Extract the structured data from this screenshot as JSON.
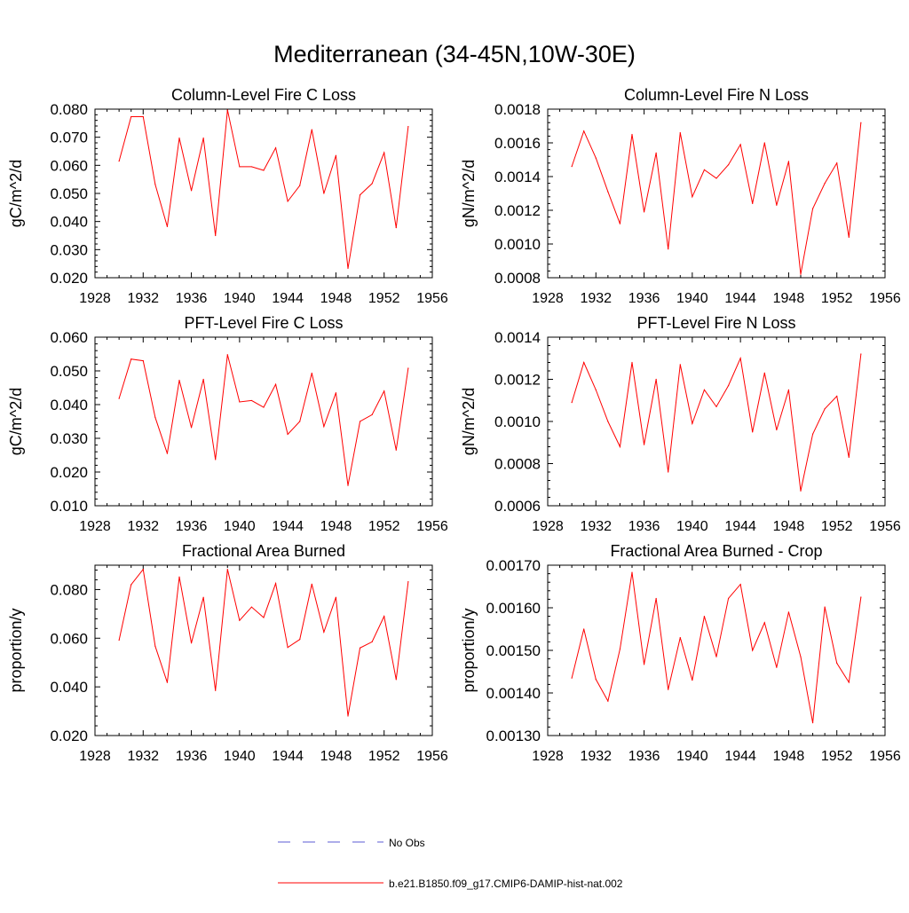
{
  "figure": {
    "title": "Mediterranean (34-45N,10W-30E)"
  },
  "legend": {
    "entries": [
      {
        "label": "No Obs",
        "color": "#5b5bd6",
        "style": "dashed"
      },
      {
        "label": "b.e21.B1850.f09_g17.CMIP6-DAMIP-hist-nat.002",
        "color": "#ff0000",
        "style": "solid"
      }
    ]
  },
  "chart_data": [
    {
      "type": "line",
      "title": "Column-Level Fire C Loss",
      "ylabel": "gC/m^2/d",
      "xlim": [
        1928,
        1956
      ],
      "xticks": [
        1928,
        1932,
        1936,
        1940,
        1944,
        1948,
        1952,
        1956
      ],
      "ylim": [
        0.02,
        0.08
      ],
      "yticks": [
        "0.020",
        "0.030",
        "0.040",
        "0.050",
        "0.060",
        "0.070",
        "0.080"
      ],
      "color": "#ff0000",
      "x": [
        1930,
        1931,
        1932,
        1933,
        1934,
        1935,
        1936,
        1937,
        1938,
        1939,
        1940,
        1941,
        1942,
        1943,
        1944,
        1945,
        1946,
        1947,
        1948,
        1949,
        1950,
        1951,
        1952,
        1953,
        1954
      ],
      "y": [
        0.0615,
        0.0773,
        0.0773,
        0.0532,
        0.0382,
        0.0697,
        0.051,
        0.0697,
        0.035,
        0.0797,
        0.0595,
        0.0595,
        0.0582,
        0.0662,
        0.0472,
        0.0528,
        0.0727,
        0.05,
        0.0635,
        0.0233,
        0.0495,
        0.0535,
        0.0645,
        0.0378,
        0.0738
      ]
    },
    {
      "type": "line",
      "title": "Column-Level Fire N Loss",
      "ylabel": "gN/m^2/d",
      "xlim": [
        1928,
        1956
      ],
      "xticks": [
        1928,
        1932,
        1936,
        1940,
        1944,
        1948,
        1952,
        1956
      ],
      "ylim": [
        0.0008,
        0.0018
      ],
      "yticks": [
        "0.0008",
        "0.0010",
        "0.0012",
        "0.0014",
        "0.0016",
        "0.0018"
      ],
      "color": "#ff0000",
      "x": [
        1930,
        1931,
        1932,
        1933,
        1934,
        1935,
        1936,
        1937,
        1938,
        1939,
        1940,
        1941,
        1942,
        1943,
        1944,
        1945,
        1946,
        1947,
        1948,
        1949,
        1950,
        1951,
        1952,
        1953,
        1954
      ],
      "y": [
        0.00146,
        0.00167,
        0.00151,
        0.00131,
        0.00112,
        0.00165,
        0.00119,
        0.00154,
        0.00097,
        0.00166,
        0.00128,
        0.00144,
        0.00139,
        0.00147,
        0.00159,
        0.00124,
        0.0016,
        0.00123,
        0.00149,
        0.00082,
        0.00121,
        0.00136,
        0.00148,
        0.00104,
        0.00172
      ]
    },
    {
      "type": "line",
      "title": "PFT-Level Fire C Loss",
      "ylabel": "gC/m^2/d",
      "xlim": [
        1928,
        1956
      ],
      "xticks": [
        1928,
        1932,
        1936,
        1940,
        1944,
        1948,
        1952,
        1956
      ],
      "ylim": [
        0.01,
        0.06
      ],
      "yticks": [
        "0.010",
        "0.020",
        "0.030",
        "0.040",
        "0.050",
        "0.060"
      ],
      "color": "#ff0000",
      "x": [
        1930,
        1931,
        1932,
        1933,
        1934,
        1935,
        1936,
        1937,
        1938,
        1939,
        1940,
        1941,
        1942,
        1943,
        1944,
        1945,
        1946,
        1947,
        1948,
        1949,
        1950,
        1951,
        1952,
        1953,
        1954
      ],
      "y": [
        0.0418,
        0.0535,
        0.053,
        0.0362,
        0.0255,
        0.0472,
        0.0332,
        0.0475,
        0.0237,
        0.0548,
        0.0408,
        0.0412,
        0.0392,
        0.046,
        0.0312,
        0.035,
        0.0493,
        0.0335,
        0.0435,
        0.016,
        0.035,
        0.037,
        0.044,
        0.0265,
        0.0508
      ]
    },
    {
      "type": "line",
      "title": "PFT-Level Fire N Loss",
      "ylabel": "gN/m^2/d",
      "xlim": [
        1928,
        1956
      ],
      "xticks": [
        1928,
        1932,
        1936,
        1940,
        1944,
        1948,
        1952,
        1956
      ],
      "ylim": [
        0.0006,
        0.0014
      ],
      "yticks": [
        "0.0006",
        "0.0008",
        "0.0010",
        "0.0012",
        "0.0014"
      ],
      "color": "#ff0000",
      "x": [
        1930,
        1931,
        1932,
        1933,
        1934,
        1935,
        1936,
        1937,
        1938,
        1939,
        1940,
        1941,
        1942,
        1943,
        1944,
        1945,
        1946,
        1947,
        1948,
        1949,
        1950,
        1951,
        1952,
        1953,
        1954
      ],
      "y": [
        0.00109,
        0.00128,
        0.00115,
        0.001,
        0.00088,
        0.00128,
        0.00089,
        0.0012,
        0.00076,
        0.00127,
        0.00099,
        0.00115,
        0.00107,
        0.00117,
        0.0013,
        0.00095,
        0.00123,
        0.00096,
        0.00115,
        0.00067,
        0.00094,
        0.00106,
        0.00112,
        0.00083,
        0.00132
      ]
    },
    {
      "type": "line",
      "title": "Fractional Area Burned",
      "ylabel": "proportion/y",
      "xlim": [
        1928,
        1956
      ],
      "xticks": [
        1928,
        1932,
        1936,
        1940,
        1944,
        1948,
        1952,
        1956
      ],
      "ylim": [
        0.02,
        0.09
      ],
      "yticks": [
        "0.020",
        "0.040",
        "0.060",
        "0.080"
      ],
      "color": "#ff0000",
      "x": [
        1930,
        1931,
        1932,
        1933,
        1934,
        1935,
        1936,
        1937,
        1938,
        1939,
        1940,
        1941,
        1942,
        1943,
        1944,
        1945,
        1946,
        1947,
        1948,
        1949,
        1950,
        1951,
        1952,
        1953,
        1954
      ],
      "y": [
        0.0592,
        0.082,
        0.0883,
        0.0567,
        0.0418,
        0.0852,
        0.058,
        0.0768,
        0.0385,
        0.0883,
        0.0673,
        0.0728,
        0.0685,
        0.0825,
        0.0562,
        0.0595,
        0.0822,
        0.0625,
        0.0768,
        0.028,
        0.056,
        0.0585,
        0.069,
        0.043,
        0.0832
      ]
    },
    {
      "type": "line",
      "title": "Fractional Area Burned - Crop",
      "ylabel": "proportion/y",
      "xlim": [
        1928,
        1956
      ],
      "xticks": [
        1928,
        1932,
        1936,
        1940,
        1944,
        1948,
        1952,
        1956
      ],
      "ylim": [
        0.0013,
        0.0017
      ],
      "yticks": [
        "0.00130",
        "0.00140",
        "0.00150",
        "0.00160",
        "0.00170"
      ],
      "color": "#ff0000",
      "x": [
        1930,
        1931,
        1932,
        1933,
        1934,
        1935,
        1936,
        1937,
        1938,
        1939,
        1940,
        1941,
        1942,
        1943,
        1944,
        1945,
        1946,
        1947,
        1948,
        1949,
        1950,
        1951,
        1952,
        1953,
        1954
      ],
      "y": [
        0.001435,
        0.00155,
        0.001432,
        0.001381,
        0.001503,
        0.001683,
        0.001467,
        0.001622,
        0.001408,
        0.00153,
        0.00143,
        0.00158,
        0.001485,
        0.001622,
        0.001655,
        0.0015,
        0.001565,
        0.00146,
        0.00159,
        0.001485,
        0.00133,
        0.001602,
        0.00147,
        0.001425,
        0.001625
      ]
    }
  ]
}
